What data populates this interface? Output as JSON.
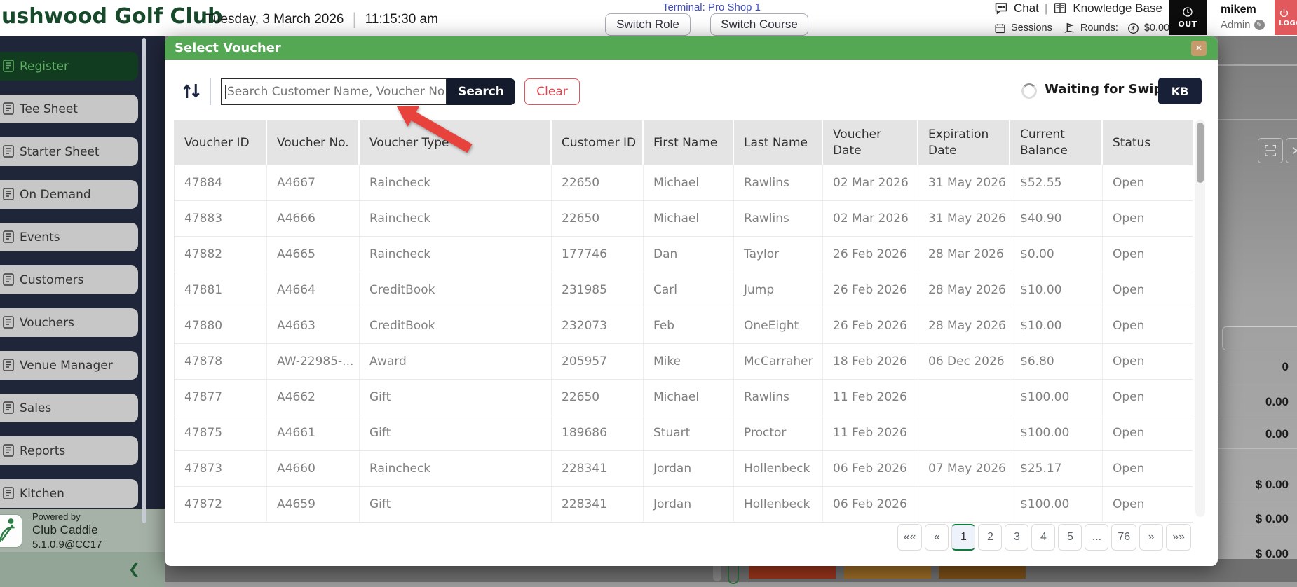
{
  "top_bar": {
    "club_name": "ushwood Golf Club",
    "date": "Tuesday, 3 March 2026",
    "time": "11:15:30 am",
    "terminal": "Terminal: Pro Shop 1",
    "switch_role_label": "Switch Role",
    "switch_course_label": "Switch Course",
    "chat_label": "Chat",
    "knowledge_base_label": "Knowledge Base",
    "sessions_label": "Sessions",
    "rounds_label": "Rounds:",
    "rounds_value": "$0.00",
    "clock_out_label": "OUT",
    "user_name": "mikem",
    "user_role": "Admin",
    "logout_label": "LOGO"
  },
  "sidebar": {
    "items": [
      {
        "label": "Register",
        "active": true
      },
      {
        "label": "Tee Sheet",
        "active": false
      },
      {
        "label": "Starter Sheet",
        "active": false
      },
      {
        "label": "On Demand",
        "active": false
      },
      {
        "label": "Events",
        "active": false
      },
      {
        "label": "Customers",
        "active": false
      },
      {
        "label": "Vouchers",
        "active": false
      },
      {
        "label": "Venue Manager",
        "active": false
      },
      {
        "label": "Sales",
        "active": false
      },
      {
        "label": "Reports",
        "active": false
      },
      {
        "label": "Kitchen",
        "active": false
      }
    ],
    "powered_by": "Powered by",
    "product": "Club Caddie",
    "version": "5.1.0.9@CC17"
  },
  "modal": {
    "title": "Select Voucher",
    "search_placeholder": "Search Customer Name, Voucher No",
    "search_button": "Search",
    "clear_button": "Clear",
    "waiting_label": "Waiting for Swipe",
    "kb_button": "KB",
    "close_icon": "✕",
    "table": {
      "columns": [
        {
          "label": "Voucher ID",
          "wrap": false
        },
        {
          "label": "Voucher No.",
          "wrap": false
        },
        {
          "label": "Voucher Type",
          "wrap": false
        },
        {
          "label": "Customer ID",
          "wrap": false
        },
        {
          "label": "First Name",
          "wrap": false
        },
        {
          "label": "Last Name",
          "wrap": false
        },
        {
          "label": "Voucher Date",
          "wrap": true
        },
        {
          "label": "Expiration Date",
          "wrap": true
        },
        {
          "label": "Current Balance",
          "wrap": true
        },
        {
          "label": "Status",
          "wrap": false
        }
      ],
      "rows": [
        [
          "47884",
          "A4667",
          "Raincheck",
          "22650",
          "Michael",
          "Rawlins",
          "02 Mar 2026",
          "31 May 2026",
          "$52.55",
          "Open"
        ],
        [
          "47883",
          "A4666",
          "Raincheck",
          "22650",
          "Michael",
          "Rawlins",
          "02 Mar 2026",
          "31 May 2026",
          "$40.90",
          "Open"
        ],
        [
          "47882",
          "A4665",
          "Raincheck",
          "177746",
          "Dan",
          "Taylor",
          "26 Feb 2026",
          "28 Mar 2026",
          "$0.00",
          "Open"
        ],
        [
          "47881",
          "A4664",
          "CreditBook",
          "231985",
          "Carl",
          "Jump",
          "26 Feb 2026",
          "28 May 2026",
          "$10.00",
          "Open"
        ],
        [
          "47880",
          "A4663",
          "CreditBook",
          "232073",
          "Feb",
          "OneEight",
          "26 Feb 2026",
          "28 May 2026",
          "$10.00",
          "Open"
        ],
        [
          "47878",
          "AW-22985-...",
          "Award",
          "205957",
          "Mike",
          "McCarraher",
          "18 Feb 2026",
          "06 Dec 2026",
          "$6.80",
          "Open"
        ],
        [
          "47877",
          "A4662",
          "Gift",
          "22650",
          "Michael",
          "Rawlins",
          "11 Feb 2026",
          "",
          "$100.00",
          "Open"
        ],
        [
          "47875",
          "A4661",
          "Gift",
          "189686",
          "Stuart",
          "Proctor",
          "11 Feb 2026",
          "",
          "$100.00",
          "Open"
        ],
        [
          "47873",
          "A4660",
          "Raincheck",
          "228341",
          "Jordan",
          "Hollenbeck",
          "06 Feb 2026",
          "07 May 2026",
          "$25.17",
          "Open"
        ],
        [
          "47872",
          "A4659",
          "Gift",
          "228341",
          "Jordan",
          "Hollenbeck",
          "06 Feb 2026",
          "",
          "$100.00",
          "Open"
        ]
      ]
    },
    "pagination": {
      "buttons": [
        "««",
        "«",
        "1",
        "2",
        "3",
        "4",
        "5",
        "...",
        "76",
        "»",
        "»»"
      ],
      "active": "1"
    }
  },
  "backdrop": {
    "values": [
      "0",
      "0.00",
      "0.00",
      "$ 0.00",
      "$ 0.00",
      "$ 0.00"
    ]
  },
  "colors": {
    "modal_header_green": "#54a854",
    "close_button_tan": "#c79a6b",
    "dark_navy": "#172036",
    "clear_red": "#e2444e",
    "sidebar_active_green": "#123c20",
    "sidebar_active_text": "#5fae64",
    "title_green": "#174a2b",
    "terminal_indigo": "#3f4cc0",
    "logout_red": "#e2595d",
    "arrow_red": "#e8423d"
  }
}
